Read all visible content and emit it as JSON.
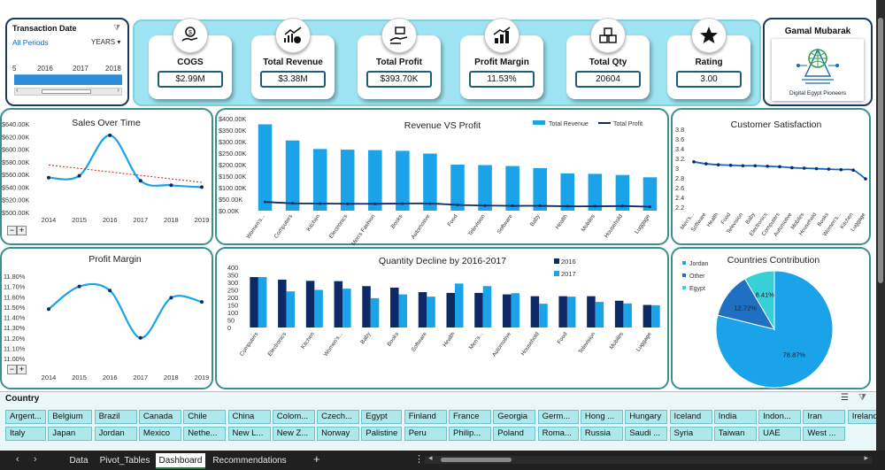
{
  "timeline": {
    "title": "Transaction Date",
    "filter_label": "All Periods",
    "level": "YEARS",
    "years": [
      "5",
      "2016",
      "2017",
      "2018"
    ]
  },
  "kpis": [
    {
      "label": "COGS",
      "value": "$2.99M",
      "icon": "money-hand-icon"
    },
    {
      "label": "Total Revenue",
      "value": "$3.38M",
      "icon": "revenue-growth-icon"
    },
    {
      "label": "Total Profit",
      "value": "$393.70K",
      "icon": "profit-hand-icon"
    },
    {
      "label": "Profit Margin",
      "value": "11.53%",
      "icon": "bar-growth-icon"
    },
    {
      "label": "Total Qty",
      "value": "20604",
      "icon": "boxes-icon"
    },
    {
      "label": "Rating",
      "value": "3.00",
      "icon": "star-icon"
    }
  ],
  "brand": {
    "name": "Gamal Mubarak",
    "logo_text": "Digital Egypt Pioneers"
  },
  "charts": {
    "sales": {
      "title": "Sales Over Time",
      "type": "line",
      "x": [
        "2014",
        "2015",
        "2016",
        "2017",
        "2018",
        "2019"
      ],
      "values": [
        555000,
        558000,
        622000,
        550000,
        543000,
        540000
      ],
      "ylim": [
        500000,
        640000
      ],
      "yticks": [
        "$640.00K",
        "$620.00K",
        "$600.00K",
        "$580.00K",
        "$560.00K",
        "$540.00K",
        "$520.00K",
        "$500.00K"
      ],
      "trendline": true
    },
    "revprofit": {
      "title": "Revenue VS  Profit",
      "type": "bar+line",
      "legend": [
        "Total Revenue",
        "Total Profit"
      ],
      "categories": [
        "Women's...",
        "Computers",
        "Kitchen",
        "Electronics",
        "Men's Fashion",
        "Books",
        "Automotive",
        "Food",
        "Television",
        "Software",
        "Baby",
        "Health",
        "Mobiles",
        "Household",
        "Luggage"
      ],
      "revenue": [
        375000,
        305000,
        268000,
        265000,
        263000,
        260000,
        248000,
        200000,
        198000,
        194000,
        185000,
        162000,
        160000,
        155000,
        145000
      ],
      "profit": [
        38000,
        32000,
        31000,
        30000,
        30000,
        31000,
        31000,
        25000,
        22000,
        21000,
        21000,
        19000,
        19000,
        20000,
        17000
      ],
      "ylim": [
        0,
        400000
      ],
      "yticks": [
        "$400.00K",
        "$350.00K",
        "$300.00K",
        "$250.00K",
        "$200.00K",
        "$150.00K",
        "$100.00K",
        "$50.00K",
        "$0.00K"
      ]
    },
    "satisfaction": {
      "title": "Customer Satisfaction",
      "type": "line",
      "categories": [
        "Men's...",
        "Software",
        "Health",
        "Food",
        "Television",
        "Baby",
        "Electronics",
        "Computers",
        "Automotive",
        "Mobiles",
        "Household",
        "Books",
        "Women's...",
        "Kitchen",
        "Luggage"
      ],
      "values": [
        3.13,
        3.09,
        3.07,
        3.06,
        3.05,
        3.05,
        3.04,
        3.03,
        3.01,
        3.0,
        2.99,
        2.98,
        2.97,
        2.96,
        2.78
      ],
      "ylim": [
        2.2,
        3.8
      ],
      "yticks": [
        "3.8",
        "3.6",
        "3.4",
        "3.2",
        "3",
        "2.8",
        "2.6",
        "2.4",
        "2.2"
      ]
    },
    "margin": {
      "title": "Profit Margin",
      "type": "line",
      "x": [
        "2014",
        "2015",
        "2016",
        "2017",
        "2018",
        "2019"
      ],
      "values": [
        11.48,
        11.7,
        11.66,
        11.2,
        11.59,
        11.55
      ],
      "ylim": [
        11.0,
        11.8
      ],
      "yticks": [
        "11.80%",
        "11.70%",
        "11.60%",
        "11.50%",
        "11.40%",
        "11.30%",
        "11.20%",
        "11.10%",
        "11.00%"
      ]
    },
    "quantity": {
      "title": "Quantity Decline by 2016-2017",
      "type": "bar",
      "legend": [
        "2016",
        "2017"
      ],
      "categories": [
        "Computers",
        "Electronics",
        "Kitchen",
        "Women's...",
        "Baby",
        "Books",
        "Software",
        "Health",
        "Men's...",
        "Automotive",
        "Household",
        "Food",
        "Television",
        "Mobiles",
        "Luggage"
      ],
      "v2016": [
        335,
        318,
        310,
        308,
        275,
        265,
        235,
        230,
        230,
        220,
        208,
        208,
        208,
        178,
        150
      ],
      "v2017": [
        335,
        240,
        250,
        258,
        195,
        220,
        205,
        292,
        275,
        228,
        158,
        205,
        170,
        160,
        148
      ],
      "ylim": [
        0,
        400
      ],
      "yticks": [
        "400",
        "350",
        "300",
        "250",
        "200",
        "150",
        "100",
        "50",
        "0"
      ]
    },
    "countries": {
      "title": "Countries Contribution",
      "type": "pie",
      "labels": [
        "Jordan",
        "Other",
        "Egypt"
      ],
      "values": [
        78.87,
        12.72,
        8.41
      ],
      "value_labels": [
        "78.87%",
        "12.72%",
        "8.41%"
      ]
    }
  },
  "country_slicer": {
    "title": "Country",
    "row1": [
      "Argent...",
      "Belgium",
      "Brazil",
      "Canada",
      "Chile",
      "China",
      "Colom...",
      "Czech...",
      "Egypt",
      "Finland",
      "France",
      "Georgia",
      "Germ...",
      "Hong ...",
      "Hungary",
      "Iceland",
      "India",
      "Indon...",
      "Iran",
      "Ireland"
    ],
    "row2": [
      "Italy",
      "Japan",
      "Jordan",
      "Mexico",
      "Nethe...",
      "New L...",
      "New Z...",
      "Norway",
      "Palistine",
      "Peru",
      "Philip...",
      "Poland",
      "Roma...",
      "Russia",
      "Saudi ...",
      "Syria",
      "Taiwan",
      "UAE",
      "West ..."
    ]
  },
  "sheet_tabs": [
    "Data",
    "Pivot_Tables",
    "Dashboard",
    "Recommendations"
  ],
  "active_tab": "Dashboard",
  "colors": {
    "accent": "#1aa3e8",
    "dark": "#0d2a66",
    "teal": "#3a8f8f",
    "kpi_bg": "#9ee4f2",
    "trend": "#cc2222"
  }
}
